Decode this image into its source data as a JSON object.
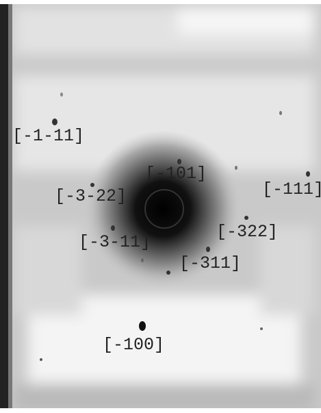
{
  "labels": [
    "[-1-11]",
    "[-101]",
    "[-111]",
    "[-3-22]",
    "[-322]",
    "[-3-11]",
    "[-311]",
    "[-100]"
  ]
}
